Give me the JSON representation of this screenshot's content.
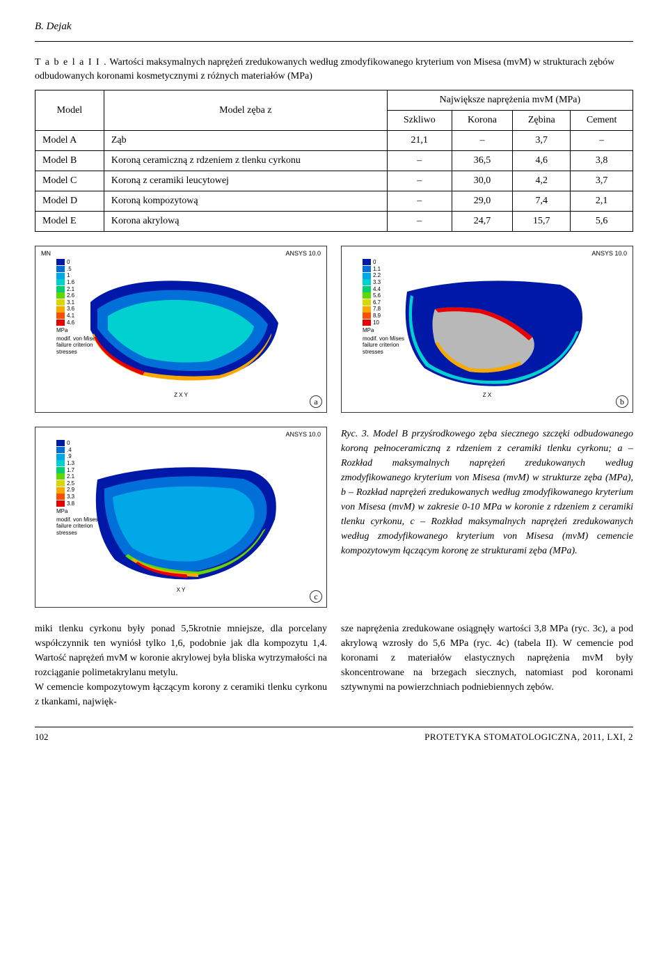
{
  "header": {
    "author": "B. Dejak"
  },
  "table": {
    "caption_label": "T a b e l a   I I .",
    "caption_text": "Wartości maksymalnych naprężeń zredukowanych według zmodyfikowanego kryterium von Misesa (mvM) w strukturach zębów odbudowanych koronami kosmetycznymi z różnych materiałów (MPa)",
    "headers": {
      "model": "Model",
      "model_zeba": "Model zęba z",
      "group": "Największe naprężenia mvM (MPa)",
      "szkliwo": "Szkliwo",
      "korona": "Korona",
      "zebina": "Zębina",
      "cement": "Cement"
    },
    "rows": [
      {
        "model": "Model A",
        "desc": "Ząb",
        "szkliwo": "21,1",
        "korona": "–",
        "zebina": "3,7",
        "cement": "–"
      },
      {
        "model": "Model B",
        "desc": "Koroną ceramiczną z rdzeniem z tlenku cyrkonu",
        "szkliwo": "–",
        "korona": "36,5",
        "zebina": "4,6",
        "cement": "3,8"
      },
      {
        "model": "Model C",
        "desc": "Koroną z ceramiki leucytowej",
        "szkliwo": "–",
        "korona": "30,0",
        "zebina": "4,2",
        "cement": "3,7"
      },
      {
        "model": "Model D",
        "desc": "Koroną kompozytową",
        "szkliwo": "–",
        "korona": "29,0",
        "zebina": "7,4",
        "cement": "2,1"
      },
      {
        "model": "Model E",
        "desc": "Korona akrylową",
        "szkliwo": "–",
        "korona": "24,7",
        "zebina": "15,7",
        "cement": "5,6"
      }
    ]
  },
  "figures": {
    "ansys": "ANSYS 10.0",
    "mn": "MN",
    "legend_unit": "MPa",
    "legend_desc": "modif. von Mises\nfailure criterion\nstresses",
    "panel_a": {
      "label": "a",
      "ticks": [
        "0",
        ".5",
        "1",
        "1.6",
        "2.1",
        "2.6",
        "3.1",
        "3.6",
        "4.1",
        "4.6"
      ],
      "colors": [
        "#0018a8",
        "#0070d8",
        "#00a8e8",
        "#00d0d0",
        "#00d070",
        "#60d800",
        "#d8d800",
        "#f8a800",
        "#f85000",
        "#e80000"
      ],
      "axis": "Z  X  Y"
    },
    "panel_b": {
      "label": "b",
      "ticks": [
        "0",
        "1.1",
        "2.2",
        "3.3",
        "4.4",
        "5.6",
        "6.7",
        "7.8",
        "8.9",
        "10"
      ],
      "colors": [
        "#0018a8",
        "#0070d8",
        "#00a8e8",
        "#00d0d0",
        "#00d070",
        "#60d800",
        "#d8d800",
        "#f8a800",
        "#f85000",
        "#e80000"
      ],
      "axis": "Z  X"
    },
    "panel_c": {
      "label": "c",
      "ticks": [
        "0",
        ".4",
        ".9",
        "1.3",
        "1.7",
        "2.1",
        "2.5",
        "2.9",
        "3.3",
        "3.8"
      ],
      "colors": [
        "#0018a8",
        "#0070d8",
        "#00a8e8",
        "#00d0d0",
        "#00d070",
        "#60d800",
        "#d8d800",
        "#f8a800",
        "#f85000",
        "#e80000"
      ],
      "axis": "X  Y"
    }
  },
  "caption": {
    "text": "Ryc. 3. Model B przyśrodkowego zęba siecznego szczęki odbudowanego koroną pełnoceramiczną z rdzeniem z ceramiki tlenku cyrkonu; a – Rozkład maksymalnych naprężeń zredukowanych według zmodyfikowanego kryterium von Misesa (mvM) w strukturze zęba (MPa), b – Rozkład naprężeń zredukowanych według zmodyfikowanego kryterium von Misesa (mvM) w zakresie 0-10 MPa w koronie z rdzeniem z ceramiki tlenku cyrkonu, c – Rozkład maksymalnych naprężeń zredukowanych według zmodyfikowanego kryterium von Misesa (mvM) cemencie kompozytowym łączącym koronę ze strukturami zęba (MPa)."
  },
  "body_text": {
    "left": "miki tlenku cyrkonu były ponad 5,5krotnie mniejsze, dla porcelany współczynnik ten wyniósł tylko 1,6, podobnie jak dla kompozytu 1,4. Wartość naprężeń mvM w koronie akrylowej była bliska wytrzymałości na rozciąganie polimetakrylanu metylu.\n    W cemencie kompozytowym łączącym korony z ceramiki tlenku cyrkonu z tkankami, najwięk-",
    "right": "sze naprężenia zredukowane osiągnęły wartości 3,8 MPa (ryc. 3c), a pod akrylową wzrosły do 5,6 MPa (ryc. 4c) (tabela II). W cemencie pod koronami z materiałów elastycznych naprężenia mvM były skoncentrowane na brzegach siecznych, natomiast pod koronami sztywnymi na powierzchniach podniebiennych zębów."
  },
  "footer": {
    "page": "102",
    "journal": "PROTETYKA STOMATOLOGICZNA, 2011, LXI, 2"
  }
}
